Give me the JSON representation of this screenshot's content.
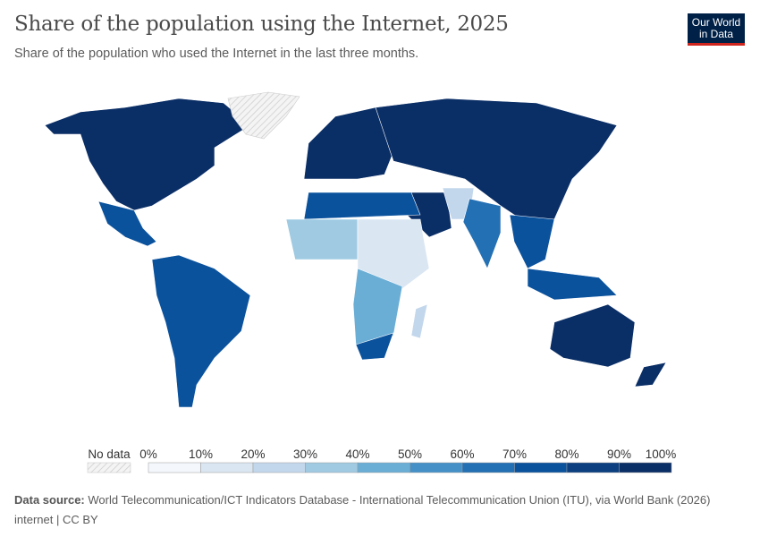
{
  "header": {
    "title": "Share of the population using the Internet, 2025",
    "subtitle": "Share of the population who used the Internet in the last three months.",
    "logo_text": "Our World in Data"
  },
  "legend": {
    "no_data_label": "No data",
    "ticks": [
      "0%",
      "10%",
      "20%",
      "30%",
      "40%",
      "50%",
      "60%",
      "70%",
      "80%",
      "90%",
      "100%"
    ],
    "bin_colors": [
      "#f4f8fc",
      "#dae6f2",
      "#c3d7ec",
      "#9fcae2",
      "#6aaed6",
      "#4591c7",
      "#2470b4",
      "#0b529d",
      "#0b3f80",
      "#0a2e66"
    ]
  },
  "map": {
    "no_data_color": "#eeeeee",
    "regions": [
      {
        "id": "north-america",
        "share": 92
      },
      {
        "id": "greenland",
        "share": null
      },
      {
        "id": "central-america",
        "share": 75
      },
      {
        "id": "south-america",
        "share": 78
      },
      {
        "id": "europe",
        "share": 92
      },
      {
        "id": "russia-north-asia",
        "share": 90
      },
      {
        "id": "middle-east",
        "share": 95
      },
      {
        "id": "afghanistan-pakistan",
        "share": 20
      },
      {
        "id": "south-asia",
        "share": 62
      },
      {
        "id": "southeast-asia",
        "share": 78
      },
      {
        "id": "indonesia",
        "share": 72
      },
      {
        "id": "australia",
        "share": 95
      },
      {
        "id": "new-zealand",
        "share": 95
      },
      {
        "id": "north-africa",
        "share": 75
      },
      {
        "id": "west-africa",
        "share": 38
      },
      {
        "id": "central-east-africa",
        "share": 15
      },
      {
        "id": "southern-africa",
        "share": 48
      },
      {
        "id": "south-africa",
        "share": 75
      },
      {
        "id": "madagascar",
        "share": 20
      }
    ]
  },
  "footer": {
    "source_label": "Data source:",
    "source_text": "World Telecommunication/ICT Indicators Database - International Telecommunication Union (ITU), via World Bank (2026)",
    "slug": "internet | CC BY"
  }
}
